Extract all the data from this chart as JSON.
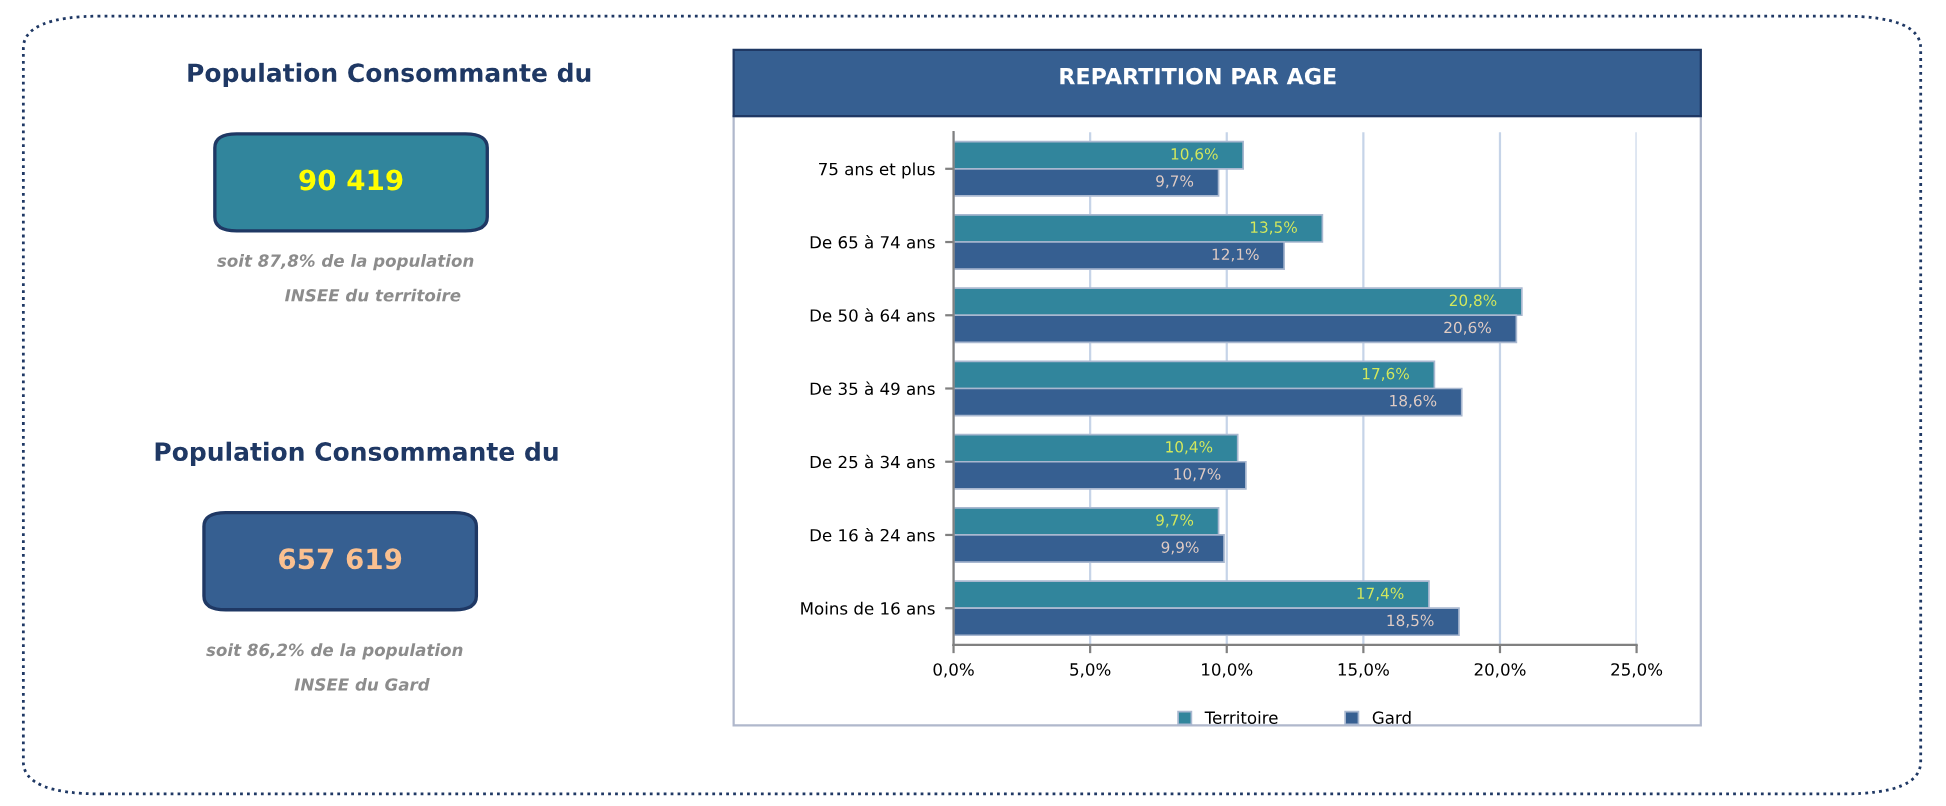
{
  "chart_data": [
    {
      "type": "other",
      "title": "Population Consommante du",
      "annotations": [
        "90 419",
        "soit 87,8% de la population",
        "INSEE du territoire"
      ],
      "colors": [
        "#31859c",
        "#ffff00"
      ]
    },
    {
      "type": "other",
      "title": "Population Consommante du",
      "annotations": [
        "657 619",
        "soit 86,2% de la population",
        "INSEE du Gard"
      ],
      "colors": [
        "#365f91",
        "#fac090"
      ]
    },
    {
      "type": "bar",
      "orientation": "horizontal",
      "title": "REPARTITION PAR AGE",
      "categories": [
        "75 ans et plus",
        "De 65 à 74 ans",
        "De 50 à 64 ans",
        "De 35 à 49 ans",
        "De 25 à 34 ans",
        "De 16 à 24 ans",
        "Moins de 16 ans"
      ],
      "series": [
        {
          "name": "Territoire",
          "color": "#31859c",
          "values": [
            10.6,
            13.5,
            20.8,
            17.6,
            10.4,
            9.7,
            17.4
          ],
          "value_labels": [
            "10,6%",
            "13,5%",
            "20,8%",
            "17,6%",
            "10,4%",
            "9,7%",
            "17,4%"
          ]
        },
        {
          "name": "Gard",
          "color": "#365f91",
          "values": [
            9.7,
            12.1,
            20.6,
            18.6,
            10.7,
            9.9,
            18.5
          ],
          "value_labels": [
            "9,7%",
            "12,1%",
            "20,6%",
            "18,6%",
            "10,7%",
            "9,9%",
            "18,5%"
          ]
        }
      ],
      "xlim": [
        0,
        25
      ],
      "xticks": [
        {
          "value": 0,
          "label": "0,0%"
        },
        {
          "value": 5,
          "label": "5,0%"
        },
        {
          "value": 10,
          "label": "10,0%"
        },
        {
          "value": 15,
          "label": "15,0%"
        },
        {
          "value": 20,
          "label": "20,0%"
        },
        {
          "value": 25,
          "label": "25,0%"
        }
      ],
      "grid": "x",
      "legend": "bottom"
    }
  ]
}
